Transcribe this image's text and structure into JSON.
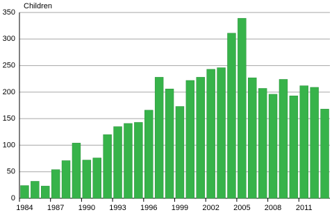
{
  "chart_data": {
    "type": "bar",
    "y_label": "Children",
    "categories": [
      "1984",
      null,
      null,
      "1987",
      null,
      null,
      "1990",
      null,
      null,
      "1993",
      null,
      null,
      "1996",
      null,
      null,
      "1999",
      null,
      null,
      "2002",
      null,
      null,
      "2005",
      null,
      null,
      "2008",
      null,
      null,
      "2011",
      null,
      null
    ],
    "values": [
      24,
      32,
      23,
      54,
      71,
      104,
      72,
      76,
      120,
      135,
      141,
      143,
      166,
      228,
      206,
      173,
      222,
      228,
      243,
      246,
      311,
      339,
      227,
      207,
      196,
      224,
      193,
      212,
      209,
      168
    ],
    "color": "#37b34a",
    "ylim": [
      0,
      350
    ],
    "yticks": [
      0,
      50,
      100,
      150,
      200,
      250,
      300,
      350
    ],
    "grid": true
  }
}
